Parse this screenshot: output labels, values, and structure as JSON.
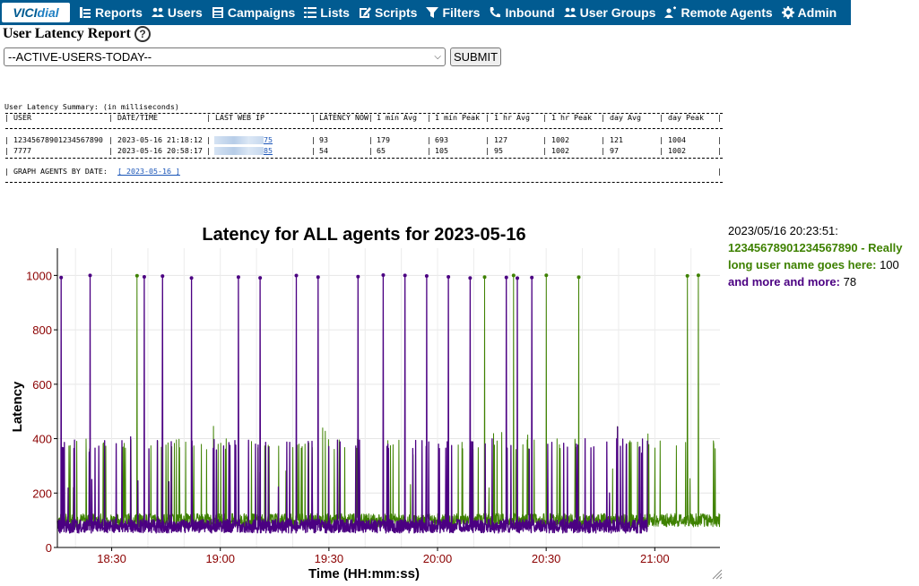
{
  "nav": {
    "logo": {
      "vici": "VICI",
      "dial": "dial"
    },
    "items": [
      {
        "label": "Reports",
        "icon": "reports-icon"
      },
      {
        "label": "Users",
        "icon": "users-icon"
      },
      {
        "label": "Campaigns",
        "icon": "campaigns-icon"
      },
      {
        "label": "Lists",
        "icon": "lists-icon"
      },
      {
        "label": "Scripts",
        "icon": "scripts-icon"
      },
      {
        "label": "Filters",
        "icon": "filter-icon"
      },
      {
        "label": "Inbound",
        "icon": "inbound-icon"
      },
      {
        "label": "User Groups",
        "icon": "user-groups-icon"
      },
      {
        "label": "Remote Agents",
        "icon": "remote-agents-icon"
      },
      {
        "label": "Admin",
        "icon": "gear-icon"
      }
    ],
    "bg_color": "#015b91"
  },
  "header": {
    "title": "User Latency Report",
    "help": "?",
    "select_value": "--ACTIVE-USERS-TODAY--",
    "submit_label": "SUBMIT"
  },
  "summary": {
    "caption": "User Latency Summary: (in milliseconds)",
    "columns": [
      "USER",
      "DATE/TIME",
      "LAST WEB IP",
      "LATENCY NOW",
      "1 min Avg",
      "1 min Peak",
      "1 hr Avg",
      "1 hr Peak",
      "day Avg",
      "day Peak"
    ],
    "rows": [
      {
        "user": "12345678901234567890",
        "datetime": "2023-05-16 21:18:12",
        "ip_suffix": "75",
        "now": "93",
        "min_avg": "179",
        "min_peak": "693",
        "hr_avg": "127",
        "hr_peak": "1002",
        "day_avg": "121",
        "day_peak": "1004"
      },
      {
        "user": "7777",
        "datetime": "2023-05-16 20:58:17",
        "ip_suffix": "85",
        "now": "54",
        "min_avg": "65",
        "min_peak": "105",
        "hr_avg": "95",
        "hr_peak": "1002",
        "day_avg": "97",
        "day_peak": "1002"
      }
    ],
    "graph_label": "GRAPH AGENTS BY DATE:",
    "graph_link": "[ 2023-05-16 ]"
  },
  "chart_data": {
    "type": "line",
    "title": "Latency for ALL agents for 2023-05-16",
    "xlabel": "Time (HH:mm:ss)",
    "ylabel": "Latency",
    "x_ticks": [
      "18:30",
      "19:00",
      "19:30",
      "20:00",
      "20:30",
      "21:00"
    ],
    "y_ticks": [
      0,
      200,
      400,
      600,
      800,
      1000
    ],
    "ylim": [
      0,
      1100
    ],
    "xlim": [
      "18:15",
      "21:18"
    ],
    "grid": true,
    "series": [
      {
        "name": "12345678901234567890 - Really long user name goes here",
        "color": "#3e8100",
        "baseline": 100,
        "spike_level": 400,
        "range": [
          "18:15",
          "21:18"
        ],
        "peak_spikes_at": [
          "18:37",
          "20:13",
          "20:21",
          "20:30",
          "20:39",
          "21:09",
          "21:12"
        ]
      },
      {
        "name": "and more and more",
        "color": "#4b0082",
        "baseline": 78,
        "spike_level": 400,
        "range": [
          "18:15",
          "20:58"
        ],
        "peak_spikes_at": [
          "18:16",
          "18:24",
          "18:39",
          "18:44",
          "18:52",
          "19:05",
          "19:11",
          "19:21",
          "19:27",
          "19:38",
          "19:45",
          "19:51",
          "19:57",
          "20:03",
          "20:09",
          "20:19",
          "20:22",
          "20:26"
        ]
      }
    ]
  },
  "hover": {
    "timestamp": "2023/05/16 20:23:51:",
    "series1_name": "12345678901234567890 - Really long user name goes here",
    "series1_value": "100",
    "series2_name": "and more and more",
    "series2_value": "78"
  }
}
